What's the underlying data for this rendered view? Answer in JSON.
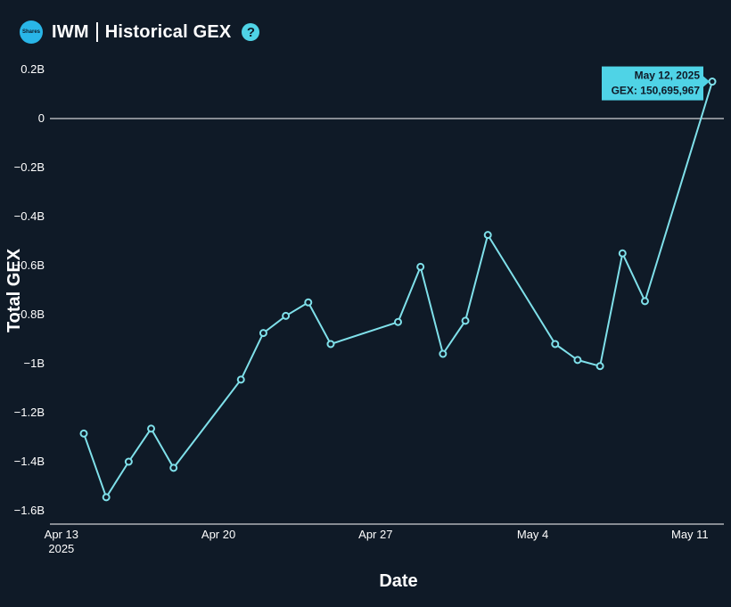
{
  "header": {
    "logo_text": "Shares",
    "ticker": "IWM",
    "title": "Historical GEX",
    "help_glyph": "?"
  },
  "colors": {
    "background": "#0f1a27",
    "line": "#7fe0ea",
    "accent": "#4fd3e6",
    "zero_line": "#ffffff"
  },
  "icons": [
    "brand-logo-icon",
    "help-icon"
  ],
  "chart_data": {
    "type": "line",
    "xlabel": "Date",
    "ylabel": "Total GEX",
    "xlim": [
      "2025-04-13",
      "2025-05-12"
    ],
    "ylim": [
      -1.65,
      0.2
    ],
    "x_ticks": [
      {
        "date": "2025-04-13",
        "label": "Apr 13",
        "sublabel": "2025"
      },
      {
        "date": "2025-04-20",
        "label": "Apr 20",
        "sublabel": ""
      },
      {
        "date": "2025-04-27",
        "label": "Apr 27",
        "sublabel": ""
      },
      {
        "date": "2025-05-04",
        "label": "May 4",
        "sublabel": ""
      },
      {
        "date": "2025-05-11",
        "label": "May 11",
        "sublabel": ""
      }
    ],
    "y_ticks": [
      {
        "value": 0.2,
        "label": "0.2B"
      },
      {
        "value": 0,
        "label": "0"
      },
      {
        "value": -0.2,
        "label": "−0.2B"
      },
      {
        "value": -0.4,
        "label": "−0.4B"
      },
      {
        "value": -0.6,
        "label": "−0.6B"
      },
      {
        "value": -0.8,
        "label": "−0.8B"
      },
      {
        "value": -1.0,
        "label": "−1B"
      },
      {
        "value": -1.2,
        "label": "−1.2B"
      },
      {
        "value": -1.4,
        "label": "−1.4B"
      },
      {
        "value": -1.6,
        "label": "−1.6B"
      }
    ],
    "series": [
      {
        "points": [
          {
            "x": "2025-04-14",
            "y": -1.285
          },
          {
            "x": "2025-04-15",
            "y": -1.545
          },
          {
            "x": "2025-04-16",
            "y": -1.4
          },
          {
            "x": "2025-04-17",
            "y": -1.265
          },
          {
            "x": "2025-04-18",
            "y": -1.425
          },
          {
            "x": "2025-04-21",
            "y": -1.065
          },
          {
            "x": "2025-04-22",
            "y": -0.875
          },
          {
            "x": "2025-04-23",
            "y": -0.805
          },
          {
            "x": "2025-04-24",
            "y": -0.75
          },
          {
            "x": "2025-04-25",
            "y": -0.92
          },
          {
            "x": "2025-04-28",
            "y": -0.83
          },
          {
            "x": "2025-04-29",
            "y": -0.605
          },
          {
            "x": "2025-04-30",
            "y": -0.96
          },
          {
            "x": "2025-05-01",
            "y": -0.825
          },
          {
            "x": "2025-05-02",
            "y": -0.475
          },
          {
            "x": "2025-05-05",
            "y": -0.92
          },
          {
            "x": "2025-05-06",
            "y": -0.985
          },
          {
            "x": "2025-05-07",
            "y": -1.01
          },
          {
            "x": "2025-05-08",
            "y": -0.55
          },
          {
            "x": "2025-05-09",
            "y": -0.745
          },
          {
            "x": "2025-05-12",
            "y": 0.150695967
          }
        ]
      }
    ],
    "tooltip": {
      "point_date": "2025-05-12",
      "date_label": "May 12, 2025",
      "value_label": "GEX: 150,695,967"
    },
    "grid": false,
    "legend": "none"
  }
}
